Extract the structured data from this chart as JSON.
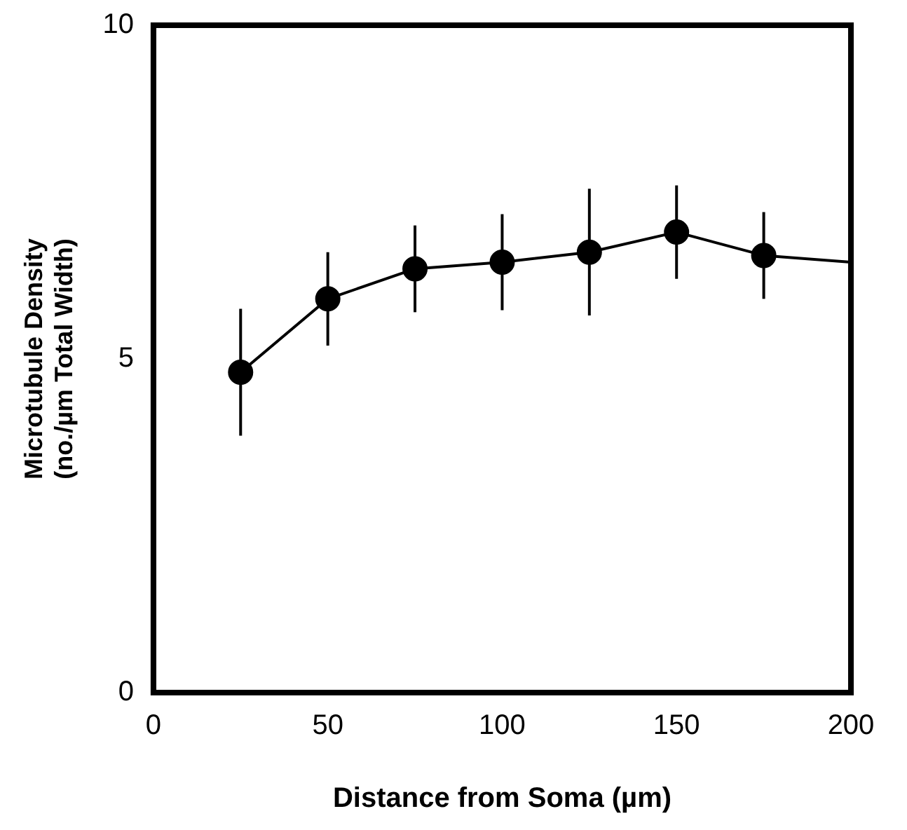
{
  "chart_data": {
    "type": "line",
    "xlabel": "Distance from Soma (µm)",
    "ylabel": "Microtubule Density\n(no./µm Total Width)",
    "xlim": [
      0,
      200
    ],
    "xticks": [
      0,
      50,
      100,
      150,
      200
    ],
    "ylim": [
      0,
      10
    ],
    "yticks": [
      0,
      5,
      10
    ],
    "grid": false,
    "legend": false,
    "series": [
      {
        "type": "line",
        "color": "#000000",
        "marker": "none",
        "x": [
          25,
          50,
          75,
          100,
          125,
          150,
          175,
          200
        ],
        "values": [
          4.8,
          5.9,
          6.35,
          6.45,
          6.6,
          6.9,
          6.55,
          6.45
        ]
      },
      {
        "type": "scatter",
        "color": "#000000",
        "marker": "circle",
        "x": [
          25,
          50,
          75,
          100,
          125,
          150,
          175
        ],
        "values": [
          4.8,
          5.9,
          6.35,
          6.45,
          6.6,
          6.9,
          6.55
        ],
        "errors": [
          0.95,
          0.7,
          0.65,
          0.72,
          0.95,
          0.7,
          0.65
        ]
      }
    ]
  }
}
